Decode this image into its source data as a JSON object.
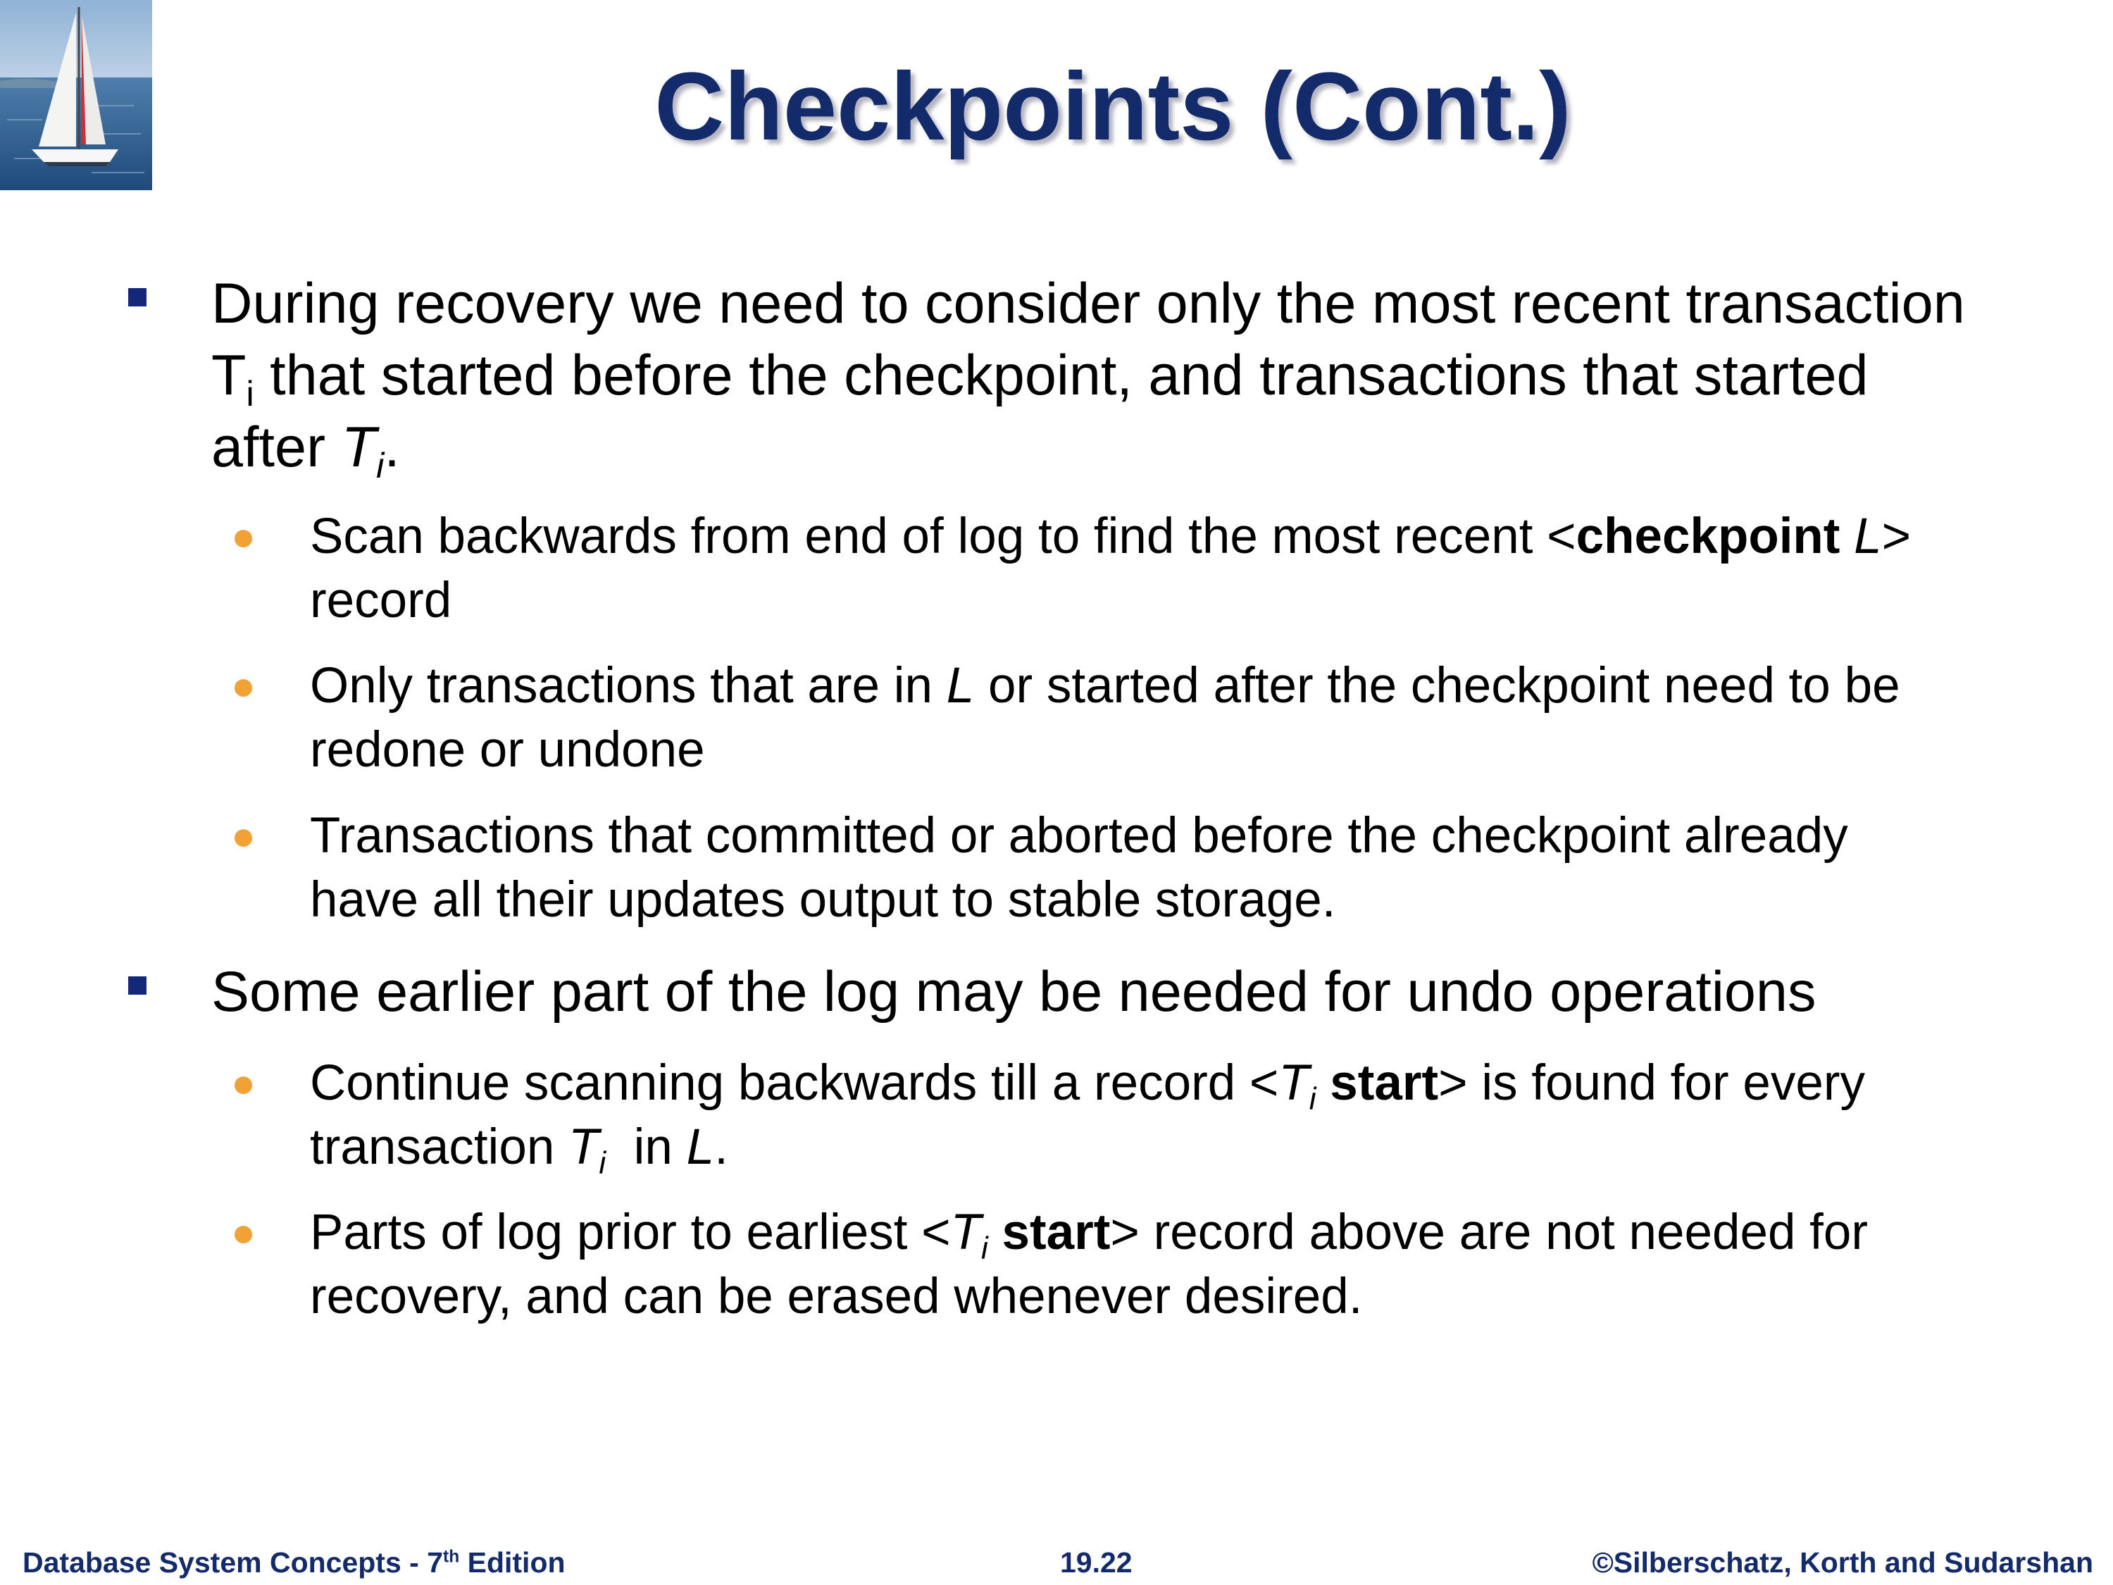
{
  "slide": {
    "title": "Checkpoints (Cont.)",
    "logo": "sailboat-logo",
    "bullet_color": "#14287a",
    "sub_bullet_color": "#f2a235",
    "title_color": "#132a6b"
  },
  "b1": {
    "t1": "During recovery we need to consider only the most recent transaction",
    "t2": "T",
    "t3": "i",
    "t4": " that started before the checkpoint, and transactions that started",
    "t5": "after ",
    "t6": "T",
    "t7": "i",
    "t8": ".",
    "s1": {
      "t1": "Scan backwards from end of log to find the most recent <",
      "t2": "checkpoint",
      "t3": " ",
      "t4": "L",
      "t5": ">",
      "t6": "record"
    },
    "s2": {
      "t1": "Only transactions that are in ",
      "t2": "L",
      "t3": " or started after the checkpoint need to be",
      "t4": "redone or undone"
    },
    "s3": {
      "t1": "Transactions that committed or aborted before the checkpoint already",
      "t2": "have all their updates output to stable storage."
    }
  },
  "b2": {
    "t1": "Some earlier part of the log may be needed for undo operations",
    "s1": {
      "t1": "Continue scanning backwards till a record <",
      "t2": "T",
      "t3": "i",
      "t4": " start",
      "t5": "> is found for every",
      "t6": "transaction ",
      "t7": "T",
      "t8": "i",
      "t9": "  in ",
      "t10": "L",
      "t11": "."
    },
    "s2": {
      "t1": "Parts of log prior to earliest <",
      "t2": "T",
      "t3": "i",
      "t4": " start",
      "t5": "> record above are not needed for",
      "t6": "recovery, and can be erased whenever desired."
    }
  },
  "footer": {
    "left": "Database System Concepts - 7",
    "left_sup": "th",
    "left_end": " Edition",
    "center": "19.22",
    "right": "©Silberschatz, Korth and Sudarshan"
  }
}
